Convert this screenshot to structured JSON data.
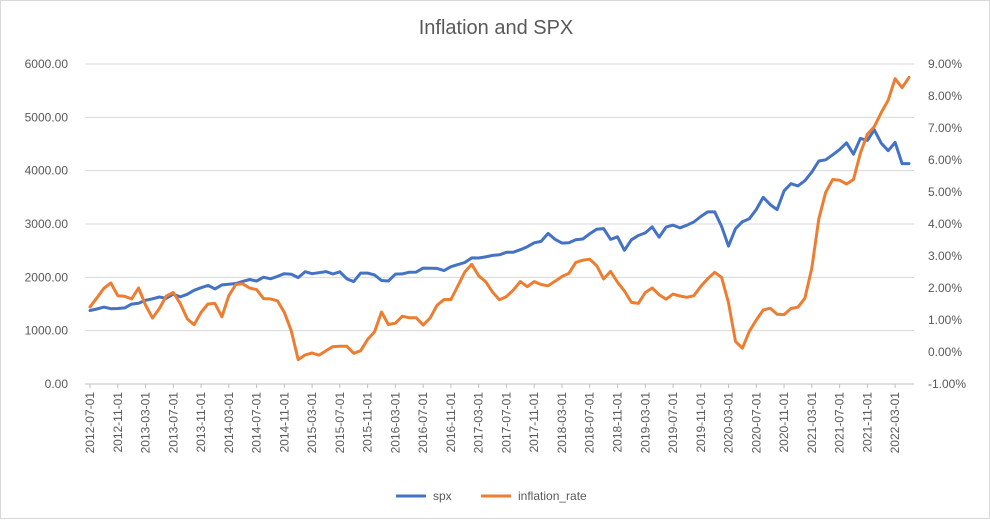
{
  "chart_data": {
    "type": "line",
    "title": "Inflation and SPX",
    "xlabel": "",
    "ylabel": "",
    "x_tick_labels": [
      "2012-07-01",
      "2012-11-01",
      "2013-03-01",
      "2013-07-01",
      "2013-11-01",
      "2014-03-01",
      "2014-07-01",
      "2014-11-01",
      "2015-03-01",
      "2015-07-01",
      "2015-11-01",
      "2016-03-01",
      "2016-07-01",
      "2016-11-01",
      "2017-03-01",
      "2017-07-01",
      "2017-11-01",
      "2018-03-01",
      "2018-07-01",
      "2018-11-01",
      "2019-03-01",
      "2019-07-01",
      "2019-11-01",
      "2020-03-01",
      "2020-07-01",
      "2020-11-01",
      "2021-03-01",
      "2021-07-01",
      "2021-11-01",
      "2022-03-01"
    ],
    "y_left": {
      "min": 0,
      "max": 6000,
      "step": 1000,
      "tick_labels": [
        "0.00",
        "1000.00",
        "2000.00",
        "3000.00",
        "4000.00",
        "5000.00",
        "6000.00"
      ]
    },
    "y_right": {
      "min": -1,
      "max": 9,
      "step": 1,
      "tick_labels": [
        "-1.00%",
        "0.00%",
        "1.00%",
        "2.00%",
        "3.00%",
        "4.00%",
        "5.00%",
        "6.00%",
        "7.00%",
        "8.00%",
        "9.00%"
      ]
    },
    "grid": true,
    "legend_position": "bottom",
    "series": [
      {
        "name": "spx",
        "color": "#4472C4",
        "axis": "left",
        "values": [
          1379,
          1406,
          1441,
          1412,
          1416,
          1426,
          1498,
          1515,
          1569,
          1597,
          1631,
          1606,
          1686,
          1633,
          1682,
          1757,
          1806,
          1848,
          1783,
          1859,
          1872,
          1884,
          1924,
          1960,
          1931,
          2003,
          1972,
          2018,
          2068,
          2059,
          1995,
          2105,
          2068,
          2086,
          2107,
          2063,
          2104,
          1972,
          1920,
          2079,
          2080,
          2044,
          1940,
          1932,
          2060,
          2065,
          2097,
          2099,
          2174,
          2171,
          2168,
          2126,
          2199,
          2239,
          2279,
          2364,
          2363,
          2384,
          2411,
          2423,
          2470,
          2472,
          2519,
          2575,
          2648,
          2674,
          2824,
          2714,
          2641,
          2648,
          2705,
          2718,
          2816,
          2902,
          2914,
          2712,
          2760,
          2507,
          2704,
          2784,
          2834,
          2946,
          2752,
          2942,
          2980,
          2926,
          2977,
          3038,
          3141,
          3226,
          3226,
          2955,
          2585,
          2912,
          3044,
          3100,
          3271,
          3500,
          3363,
          3270,
          3622,
          3756,
          3714,
          3811,
          3973,
          4181,
          4204,
          4297,
          4395,
          4523,
          4308,
          4605,
          4567,
          4766,
          4516,
          4374,
          4530,
          4132,
          4132
        ]
      },
      {
        "name": "inflation_rate",
        "color": "#ED7D31",
        "axis": "right",
        "values": [
          1.41,
          1.69,
          1.99,
          2.16,
          1.76,
          1.74,
          1.66,
          2.0,
          1.47,
          1.06,
          1.36,
          1.75,
          1.86,
          1.52,
          1.04,
          0.85,
          1.24,
          1.5,
          1.52,
          1.1,
          1.76,
          2.11,
          2.13,
          2.0,
          1.95,
          1.67,
          1.66,
          1.6,
          1.24,
          0.66,
          -0.24,
          -0.09,
          -0.03,
          -0.1,
          0.04,
          0.17,
          0.18,
          0.18,
          -0.04,
          0.04,
          0.39,
          0.63,
          1.25,
          0.86,
          0.9,
          1.12,
          1.07,
          1.07,
          0.84,
          1.06,
          1.46,
          1.64,
          1.64,
          2.07,
          2.5,
          2.74,
          2.38,
          2.2,
          1.87,
          1.63,
          1.73,
          1.94,
          2.2,
          2.04,
          2.2,
          2.11,
          2.07,
          2.21,
          2.36,
          2.46,
          2.8,
          2.87,
          2.9,
          2.7,
          2.28,
          2.52,
          2.18,
          1.91,
          1.55,
          1.52,
          1.86,
          2.0,
          1.79,
          1.65,
          1.81,
          1.75,
          1.71,
          1.76,
          2.05,
          2.29,
          2.49,
          2.33,
          1.54,
          0.33,
          0.12,
          0.65,
          1.0,
          1.31,
          1.37,
          1.18,
          1.17,
          1.36,
          1.4,
          1.68,
          2.62,
          4.16,
          4.99,
          5.39,
          5.37,
          5.25,
          5.39,
          6.22,
          6.81,
          7.04,
          7.48,
          7.87,
          8.54,
          8.26,
          8.58
        ]
      }
    ]
  }
}
